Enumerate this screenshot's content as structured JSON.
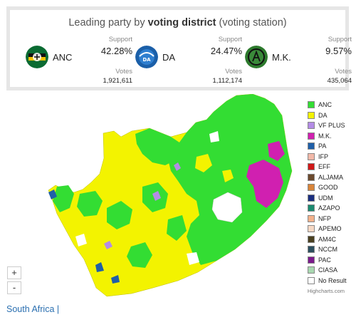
{
  "title": {
    "prefix": "Leading party by ",
    "bold": "voting district",
    "suffix": " (voting station)"
  },
  "cards": [
    {
      "name": "ANC",
      "support_label": "Support",
      "support": "42.28%",
      "votes_label": "Votes",
      "votes": "1,921,611",
      "logo": "anc-logo"
    },
    {
      "name": "DA",
      "support_label": "Support",
      "support": "24.47%",
      "votes_label": "Votes",
      "votes": "1,112,174",
      "logo": "da-logo"
    },
    {
      "name": "M.K.",
      "support_label": "Support",
      "support": "9.57%",
      "votes_label": "Votes",
      "votes": "435,064",
      "logo": "mk-logo"
    }
  ],
  "legend": [
    {
      "label": "ANC",
      "color": "#33dd33"
    },
    {
      "label": "DA",
      "color": "#f3f300"
    },
    {
      "label": "VF PLUS",
      "color": "#b48ce6"
    },
    {
      "label": "M.K.",
      "color": "#d020b0"
    },
    {
      "label": "PA",
      "color": "#1f5fa8"
    },
    {
      "label": "IFP",
      "color": "#f2b8a8"
    },
    {
      "label": "EFF",
      "color": "#d01818"
    },
    {
      "label": "ALJAMA",
      "color": "#6b4a2e"
    },
    {
      "label": "GOOD",
      "color": "#d8843a"
    },
    {
      "label": "UDM",
      "color": "#1a2f80"
    },
    {
      "label": "AZAPO",
      "color": "#1b8a70"
    },
    {
      "label": "NFP",
      "color": "#f4b18a"
    },
    {
      "label": "APEMO",
      "color": "#f6d8c4"
    },
    {
      "label": "AM4C",
      "color": "#4a4020"
    },
    {
      "label": "NCCM",
      "color": "#2c4f5e"
    },
    {
      "label": "PAC",
      "color": "#7b1a8c"
    },
    {
      "label": "CIASA",
      "color": "#a8d8b0"
    },
    {
      "label": "No Result",
      "color": "#ffffff"
    }
  ],
  "zoom": {
    "in": "+",
    "out": "-"
  },
  "credits": "Highcharts.com",
  "footer": "South Africa |",
  "colors": {
    "anc": "#33dd33",
    "da": "#f3f300",
    "mk": "#d020b0",
    "pa": "#1f5fa8",
    "vf": "#b48ce6"
  }
}
